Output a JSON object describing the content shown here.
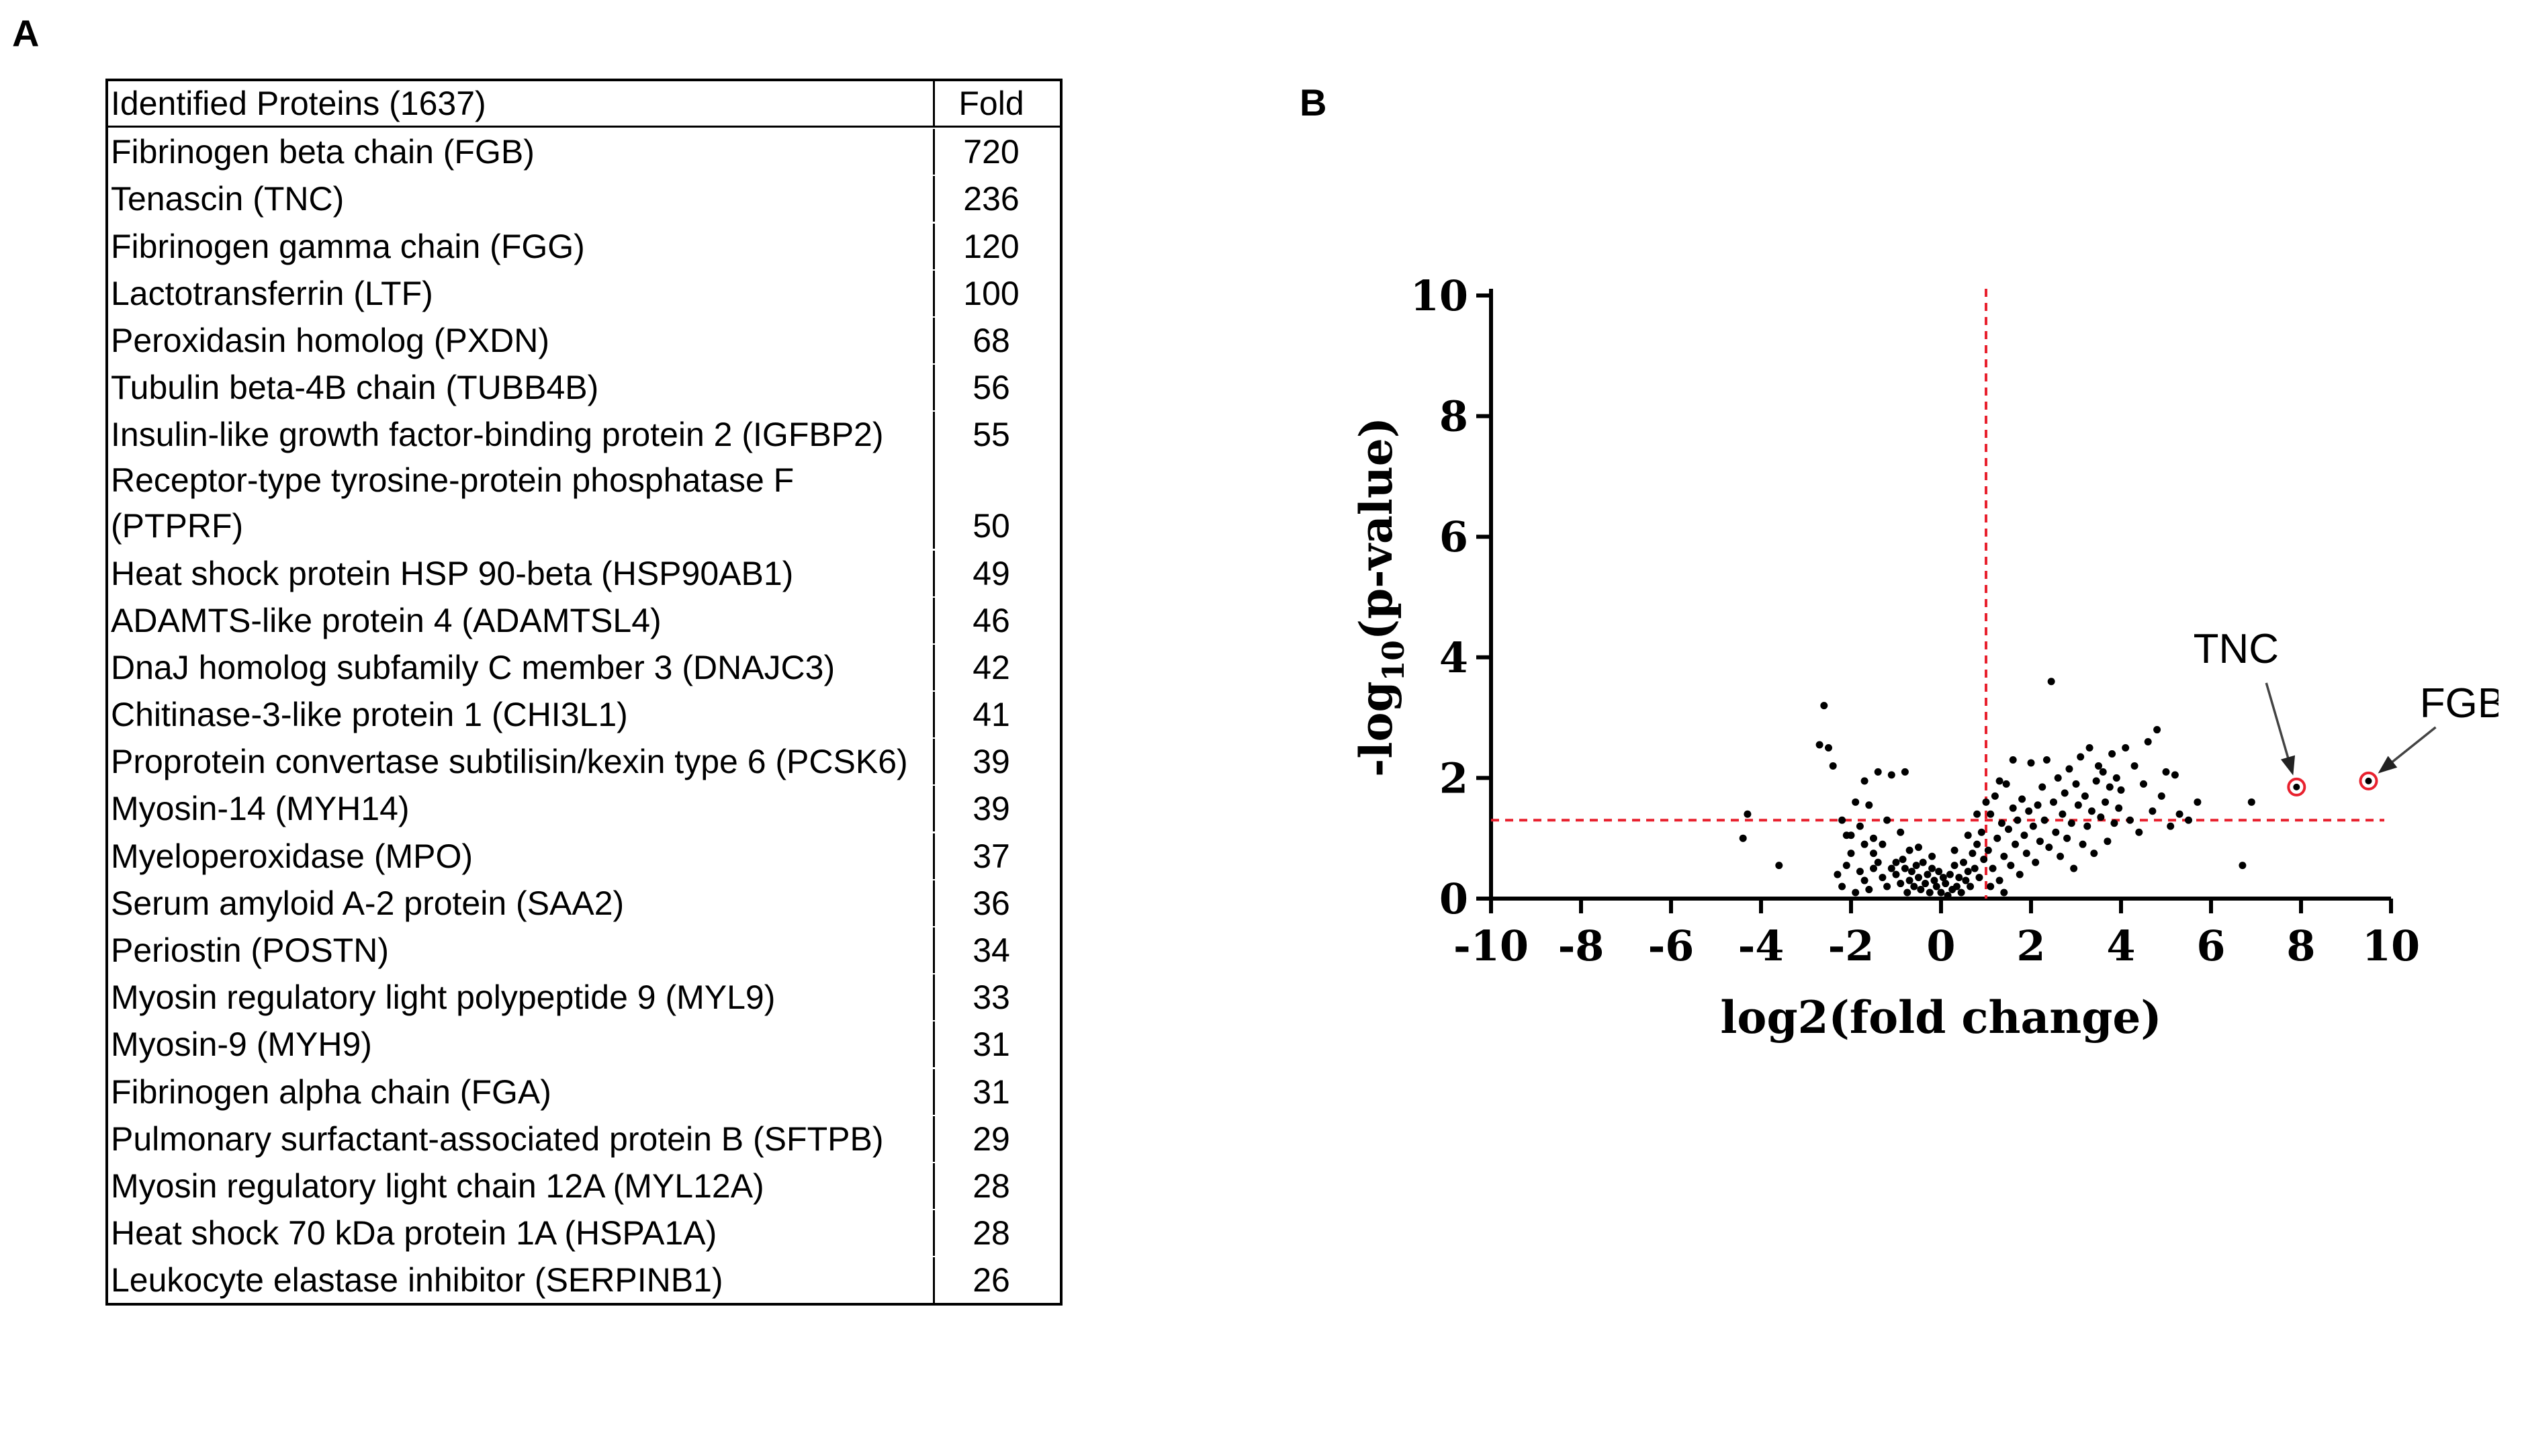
{
  "panel_a": {
    "label": "A",
    "header": {
      "name": "Identified Proteins (1637)",
      "fold": "Fold"
    },
    "rows": [
      {
        "name": "Fibrinogen beta chain (FGB)",
        "fold": "720"
      },
      {
        "name": "Tenascin (TNC)",
        "fold": "236"
      },
      {
        "name": "Fibrinogen gamma chain (FGG)",
        "fold": "120"
      },
      {
        "name": "Lactotransferrin (LTF)",
        "fold": "100"
      },
      {
        "name": "Peroxidasin homolog (PXDN)",
        "fold": "68"
      },
      {
        "name": "Tubulin beta-4B chain (TUBB4B)",
        "fold": "56"
      },
      {
        "name": "Insulin-like growth factor-binding protein 2 (IGFBP2)",
        "fold": "55"
      },
      {
        "name": "Receptor-type tyrosine-protein phosphatase F (PTPRF)",
        "fold": "50"
      },
      {
        "name": "Heat shock protein HSP 90-beta (HSP90AB1)",
        "fold": "49"
      },
      {
        "name": "ADAMTS-like protein 4 (ADAMTSL4)",
        "fold": "46"
      },
      {
        "name": "DnaJ homolog subfamily C member 3 (DNAJC3)",
        "fold": "42"
      },
      {
        "name": "Chitinase-3-like protein 1 (CHI3L1)",
        "fold": "41"
      },
      {
        "name": "Proprotein convertase subtilisin/kexin type 6 (PCSK6)",
        "fold": "39"
      },
      {
        "name": "Myosin-14 (MYH14)",
        "fold": "39"
      },
      {
        "name": "Myeloperoxidase (MPO)",
        "fold": "37"
      },
      {
        "name": "Serum amyloid A-2 protein (SAA2)",
        "fold": "36"
      },
      {
        "name": "Periostin (POSTN)",
        "fold": "34"
      },
      {
        "name": "Myosin regulatory light polypeptide 9 (MYL9)",
        "fold": "33"
      },
      {
        "name": "Myosin-9 (MYH9)",
        "fold": "31"
      },
      {
        "name": "Fibrinogen alpha chain (FGA)",
        "fold": "31"
      },
      {
        "name": "Pulmonary surfactant-associated protein B (SFTPB)",
        "fold": "29"
      },
      {
        "name": "Myosin regulatory light chain 12A (MYL12A)",
        "fold": "28"
      },
      {
        "name": "Heat shock 70 kDa protein 1A (HSPA1A)",
        "fold": "28"
      },
      {
        "name": "Leukocyte elastase inhibitor (SERPINB1)",
        "fold": "26"
      }
    ]
  },
  "panel_b": {
    "label": "B"
  },
  "chart_data": {
    "type": "scatter",
    "title": "",
    "xlabel": "log2(fold change)",
    "ylabel_prefix": "-log",
    "ylabel_subscript": "10",
    "ylabel_suffix": "(p-value)",
    "xlim": [
      -10,
      10
    ],
    "ylim": [
      0,
      10
    ],
    "x_ticks": [
      "-10",
      "-8",
      "-6",
      "-4",
      "-2",
      "0",
      "2",
      "4",
      "6",
      "8",
      "10"
    ],
    "y_ticks": [
      "0",
      "2",
      "4",
      "6",
      "8",
      "10"
    ],
    "threshold_x": 1,
    "threshold_y": 1.3,
    "threshold_color": "#e8212e",
    "point_color": "#000000",
    "highlight_color": "#e8212e",
    "highlighted": [
      {
        "label": "TNC",
        "x": 7.9,
        "y": 1.85
      },
      {
        "label": "FGB",
        "x": 9.5,
        "y": 1.95
      }
    ],
    "points": [
      [
        -4.3,
        1.4
      ],
      [
        -4.4,
        1.0
      ],
      [
        -3.6,
        0.55
      ],
      [
        -2.6,
        3.2
      ],
      [
        -2.7,
        2.55
      ],
      [
        -2.5,
        2.5
      ],
      [
        -2.4,
        2.2
      ],
      [
        -2.2,
        1.3
      ],
      [
        -2.1,
        1.05
      ],
      [
        -2.0,
        0.75
      ],
      [
        -1.9,
        1.6
      ],
      [
        -1.8,
        1.2
      ],
      [
        -1.7,
        1.95
      ],
      [
        -1.6,
        1.55
      ],
      [
        -1.5,
        1.0
      ],
      [
        -1.4,
        2.1
      ],
      [
        -1.3,
        0.9
      ],
      [
        -1.2,
        1.3
      ],
      [
        -1.1,
        2.05
      ],
      [
        -1.0,
        0.6
      ],
      [
        -0.9,
        1.1
      ],
      [
        -0.8,
        2.1
      ],
      [
        -0.7,
        0.8
      ],
      [
        -2.3,
        0.4
      ],
      [
        -2.2,
        0.2
      ],
      [
        -2.1,
        0.55
      ],
      [
        -1.9,
        0.1
      ],
      [
        -1.8,
        0.45
      ],
      [
        -1.7,
        0.3
      ],
      [
        -1.6,
        0.15
      ],
      [
        -1.5,
        0.5
      ],
      [
        -1.4,
        0.6
      ],
      [
        -1.3,
        0.35
      ],
      [
        -1.2,
        0.2
      ],
      [
        -1.1,
        0.5
      ],
      [
        -1.0,
        0.4
      ],
      [
        -0.9,
        0.25
      ],
      [
        -0.85,
        0.65
      ],
      [
        -0.8,
        0.5
      ],
      [
        -0.75,
        0.1
      ],
      [
        -0.7,
        0.3
      ],
      [
        -0.65,
        0.45
      ],
      [
        -0.6,
        0.2
      ],
      [
        -0.55,
        0.55
      ],
      [
        -0.5,
        0.35
      ],
      [
        -0.45,
        0.15
      ],
      [
        -0.4,
        0.6
      ],
      [
        -0.35,
        0.25
      ],
      [
        -0.3,
        0.4
      ],
      [
        -0.25,
        0.1
      ],
      [
        -0.2,
        0.5
      ],
      [
        -0.15,
        0.3
      ],
      [
        -0.1,
        0.2
      ],
      [
        -0.05,
        0.45
      ],
      [
        0.0,
        0.1
      ],
      [
        0.05,
        0.35
      ],
      [
        0.1,
        0.25
      ],
      [
        0.15,
        0.05
      ],
      [
        0.2,
        0.4
      ],
      [
        0.25,
        0.15
      ],
      [
        0.3,
        0.55
      ],
      [
        0.35,
        0.2
      ],
      [
        0.4,
        0.35
      ],
      [
        0.45,
        0.1
      ],
      [
        0.5,
        0.6
      ],
      [
        0.55,
        0.3
      ],
      [
        0.6,
        0.45
      ],
      [
        0.65,
        0.2
      ],
      [
        0.7,
        0.75
      ],
      [
        0.75,
        0.5
      ],
      [
        0.8,
        0.9
      ],
      [
        0.85,
        0.35
      ],
      [
        0.9,
        1.1
      ],
      [
        0.95,
        0.65
      ],
      [
        1.05,
        0.8
      ],
      [
        1.1,
        1.4
      ],
      [
        1.15,
        0.5
      ],
      [
        1.2,
        1.7
      ],
      [
        1.25,
        1.0
      ],
      [
        1.3,
        0.3
      ],
      [
        1.35,
        1.25
      ],
      [
        1.4,
        0.7
      ],
      [
        1.45,
        1.9
      ],
      [
        1.5,
        1.15
      ],
      [
        1.55,
        0.55
      ],
      [
        1.6,
        1.5
      ],
      [
        1.65,
        0.9
      ],
      [
        1.7,
        1.3
      ],
      [
        1.75,
        0.4
      ],
      [
        1.8,
        1.65
      ],
      [
        1.85,
        1.05
      ],
      [
        1.9,
        0.75
      ],
      [
        1.95,
        1.45
      ],
      [
        2.0,
        2.25
      ],
      [
        2.05,
        1.2
      ],
      [
        2.1,
        0.6
      ],
      [
        2.15,
        1.55
      ],
      [
        2.2,
        0.95
      ],
      [
        2.25,
        1.85
      ],
      [
        2.3,
        1.3
      ],
      [
        2.35,
        2.3
      ],
      [
        2.4,
        0.85
      ],
      [
        2.45,
        3.6
      ],
      [
        2.5,
        1.6
      ],
      [
        2.55,
        1.1
      ],
      [
        2.6,
        2.0
      ],
      [
        2.65,
        0.7
      ],
      [
        2.7,
        1.4
      ],
      [
        2.75,
        1.75
      ],
      [
        2.8,
        1.0
      ],
      [
        2.85,
        2.15
      ],
      [
        2.9,
        1.25
      ],
      [
        2.95,
        0.5
      ],
      [
        3.0,
        1.9
      ],
      [
        3.05,
        1.55
      ],
      [
        3.1,
        2.35
      ],
      [
        3.15,
        0.9
      ],
      [
        3.2,
        1.7
      ],
      [
        3.25,
        1.2
      ],
      [
        3.3,
        2.5
      ],
      [
        3.35,
        1.45
      ],
      [
        3.4,
        0.75
      ],
      [
        3.45,
        1.95
      ],
      [
        3.5,
        2.2
      ],
      [
        3.55,
        1.35
      ],
      [
        3.6,
        2.1
      ],
      [
        3.65,
        1.6
      ],
      [
        3.7,
        0.95
      ],
      [
        3.75,
        1.85
      ],
      [
        3.8,
        2.4
      ],
      [
        3.85,
        1.25
      ],
      [
        3.9,
        2.0
      ],
      [
        3.95,
        1.5
      ],
      [
        4.0,
        1.8
      ],
      [
        4.1,
        2.5
      ],
      [
        4.2,
        1.3
      ],
      [
        4.3,
        2.2
      ],
      [
        4.4,
        1.1
      ],
      [
        4.5,
        1.9
      ],
      [
        4.6,
        2.6
      ],
      [
        4.7,
        1.45
      ],
      [
        4.8,
        2.8
      ],
      [
        4.9,
        1.7
      ],
      [
        5.0,
        2.1
      ],
      [
        5.1,
        1.2
      ],
      [
        5.2,
        2.05
      ],
      [
        5.3,
        1.4
      ],
      [
        5.5,
        1.3
      ],
      [
        5.7,
        1.6
      ],
      [
        6.7,
        0.55
      ],
      [
        6.9,
        1.6
      ],
      [
        0.6,
        1.05
      ],
      [
        0.8,
        1.4
      ],
      [
        1.0,
        1.6
      ],
      [
        1.3,
        1.95
      ],
      [
        1.6,
        2.3
      ],
      [
        1.1,
        0.2
      ],
      [
        1.4,
        0.1
      ],
      [
        0.3,
        0.8
      ],
      [
        -0.2,
        0.7
      ],
      [
        -0.5,
        0.85
      ],
      [
        -1.5,
        0.75
      ],
      [
        -2.0,
        1.05
      ],
      [
        -1.7,
        0.9
      ]
    ]
  }
}
